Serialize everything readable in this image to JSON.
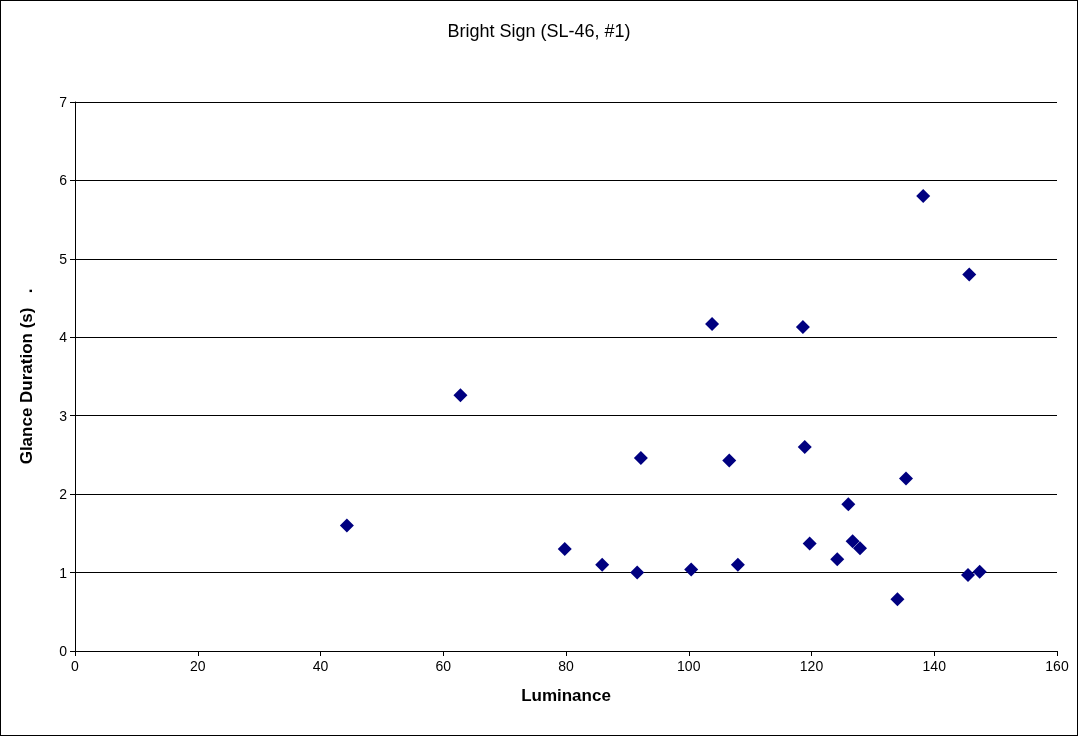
{
  "chart_data": {
    "type": "scatter",
    "title": "Bright Sign (SL-46, #1)",
    "xlabel": "Luminance",
    "ylabel": "Glance Duration (s)   .",
    "x": [
      44.3,
      62.8,
      79.8,
      85.9,
      91.6,
      92.2,
      100.4,
      103.8,
      106.6,
      108,
      118.6,
      118.9,
      119.7,
      124.2,
      126,
      126.7,
      127.9,
      134,
      135.4,
      138.2,
      145.7,
      145.5,
      147.4
    ],
    "values": [
      1.6,
      3.26,
      1.3,
      1.1,
      1.0,
      2.46,
      1.04,
      4.17,
      2.43,
      1.1,
      4.13,
      2.6,
      1.37,
      1.17,
      1.87,
      1.4,
      1.31,
      0.66,
      2.2,
      5.8,
      4.8,
      0.97,
      1.01
    ],
    "color": "#000080",
    "marker": "diamond",
    "grid": "y",
    "xlim": [
      0,
      160
    ],
    "xticks": [
      0,
      20,
      40,
      60,
      80,
      100,
      120,
      140,
      160
    ],
    "ylim": [
      0,
      7
    ],
    "yticks": [
      0,
      1,
      2,
      3,
      4,
      5,
      6,
      7
    ]
  }
}
